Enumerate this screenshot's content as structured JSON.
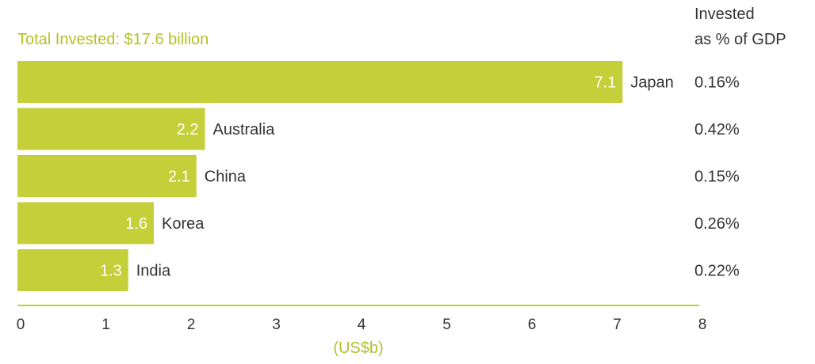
{
  "chart_data": {
    "type": "bar",
    "orientation": "horizontal",
    "title": "Total Invested: $17.6 billion",
    "xlabel": "(US$b)",
    "ylabel": "",
    "xlim": [
      0,
      8
    ],
    "x_ticks": [
      "0",
      "1",
      "2",
      "3",
      "4",
      "5",
      "6",
      "7",
      "8"
    ],
    "categories": [
      "Japan",
      "Australia",
      "China",
      "Korea",
      "India"
    ],
    "values": [
      7.1,
      2.2,
      2.1,
      1.6,
      1.3
    ],
    "value_labels": [
      "7.1",
      "2.2",
      "2.1",
      "1.6",
      "1.3"
    ],
    "right_column_header": [
      "Invested",
      "as % of GDP"
    ],
    "right_column_values": [
      "0.16%",
      "0.42%",
      "0.15%",
      "0.26%",
      "0.22%"
    ],
    "grid": false,
    "colors": {
      "bar": "#c5cf3a",
      "accent_text": "#b3c22a",
      "text": "#333333",
      "axis": "#c5cf3a"
    }
  }
}
